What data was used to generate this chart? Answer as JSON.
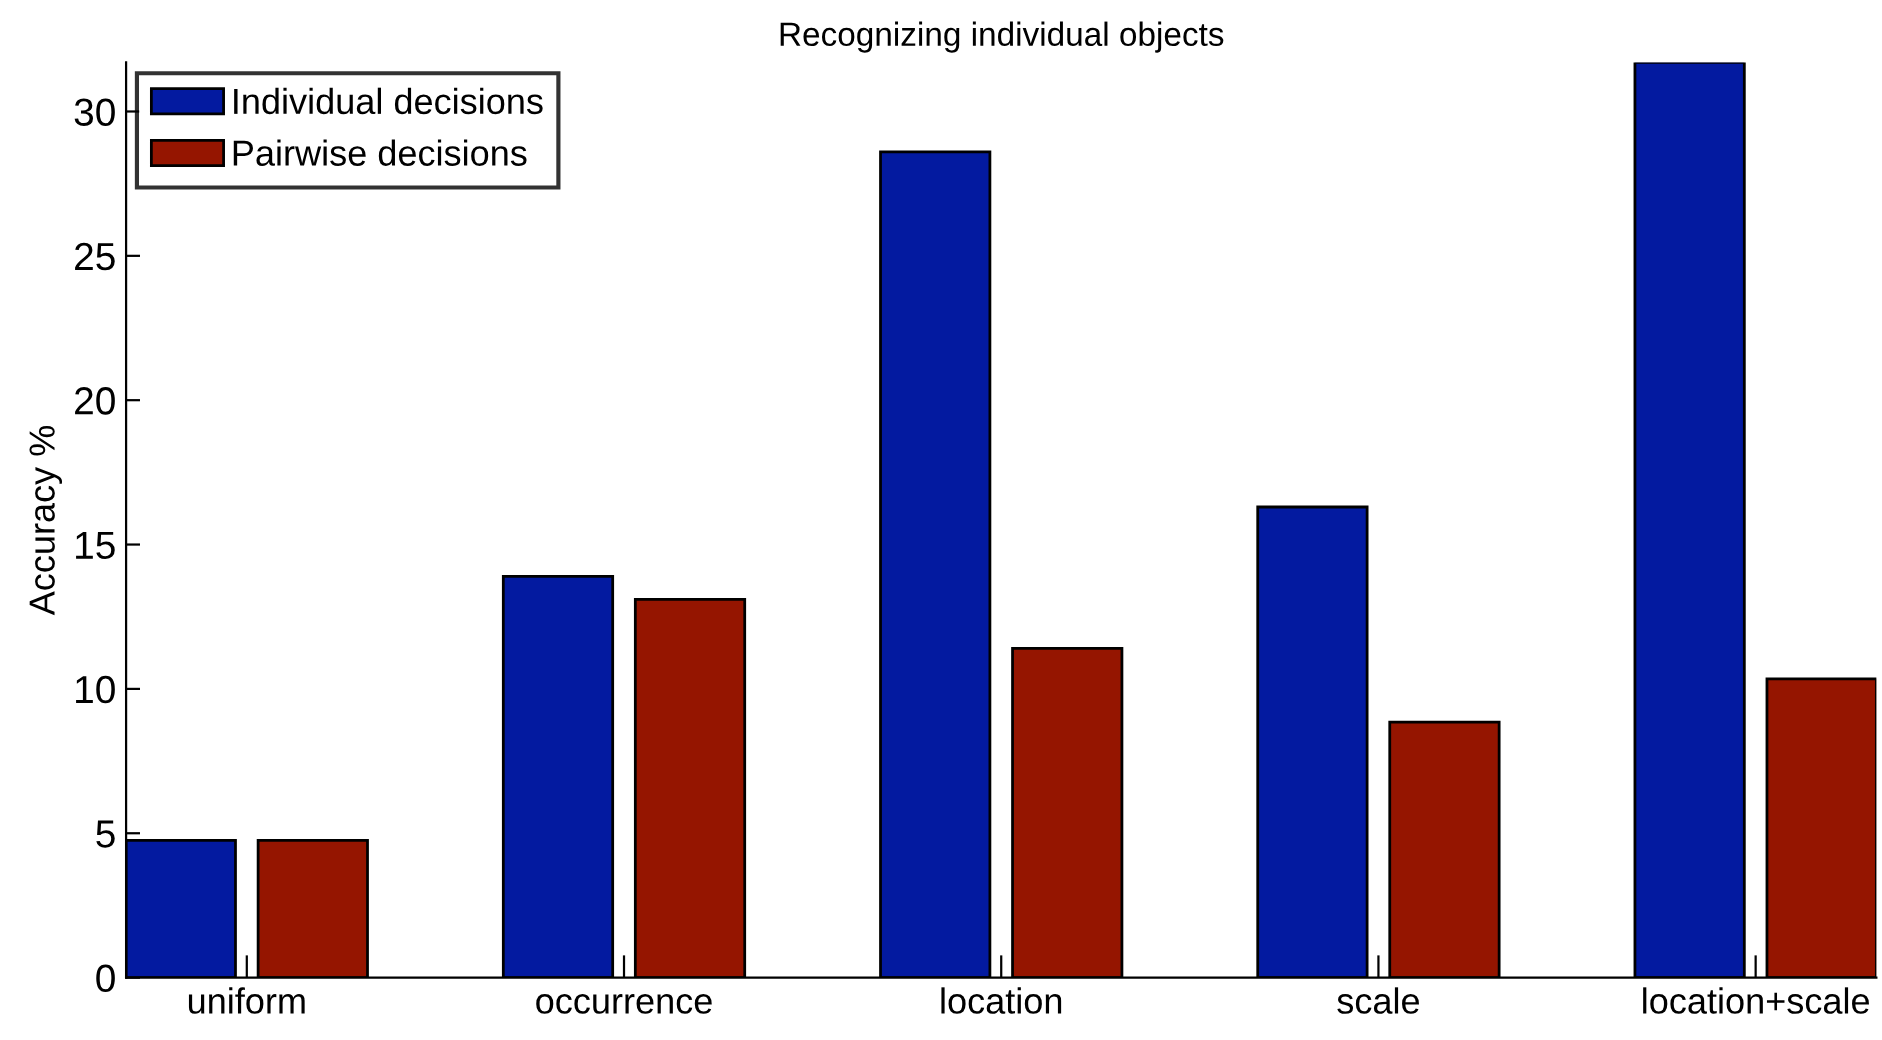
{
  "chart_data": {
    "type": "bar",
    "title": "Recognizing individual objects",
    "ylabel": "Accuracy %",
    "categories": [
      "uniform",
      "occurrence",
      "location",
      "scale",
      "location+scale"
    ],
    "series": [
      {
        "name": "Individual decisions",
        "color": "#031aa0",
        "values": [
          4.75,
          13.9,
          28.6,
          16.3,
          31.7
        ]
      },
      {
        "name": "Pairwise decisions",
        "color": "#951500",
        "values": [
          4.75,
          13.1,
          11.4,
          8.85,
          10.35
        ]
      }
    ],
    "ylim": [
      0,
      31.7
    ],
    "yticks": [
      0,
      5,
      10,
      15,
      20,
      25,
      30
    ],
    "grid": false,
    "legend": "top left"
  }
}
